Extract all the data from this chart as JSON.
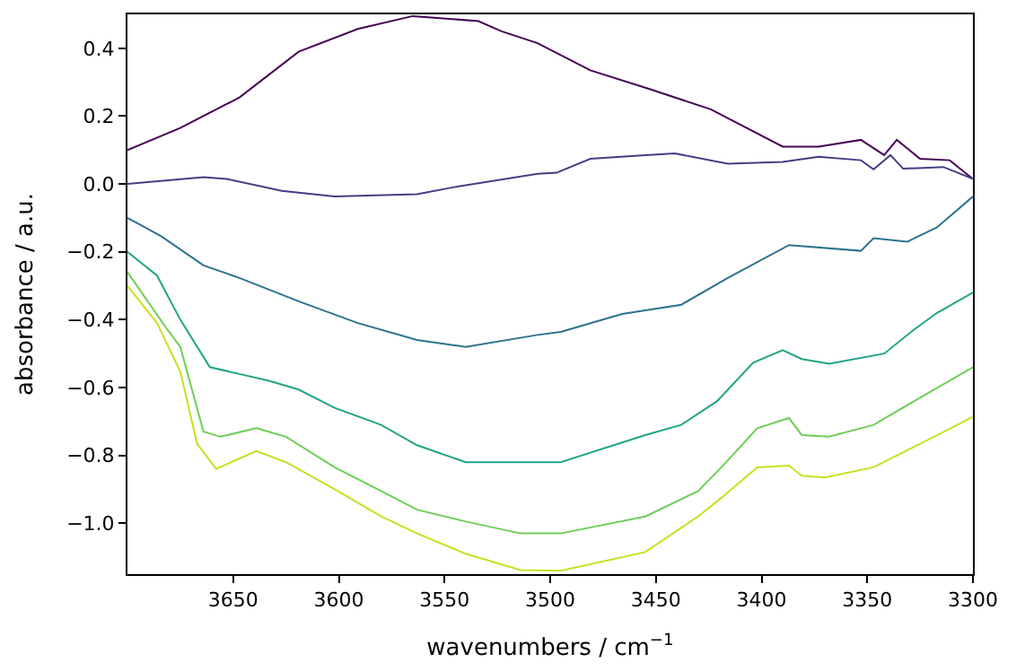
{
  "chart_data": {
    "type": "line",
    "xlabel": "wavenumbers / cm$^{−1}$",
    "ylabel": "absorbance / a.u.",
    "xlim": [
      3700,
      3300
    ],
    "xticks": [
      3650,
      3600,
      3550,
      3500,
      3450,
      3400,
      3350,
      3300
    ],
    "ylim": [
      -1.15,
      0.5
    ],
    "yticks": [
      {
        "value": -1.0,
        "label": "−1.0"
      },
      {
        "value": -0.8,
        "label": "−0.8"
      },
      {
        "value": -0.6,
        "label": "−0.6"
      },
      {
        "value": -0.4,
        "label": "−0.4"
      },
      {
        "value": -0.2,
        "label": "−0.2"
      },
      {
        "value": 0.0,
        "label": "0.0"
      },
      {
        "value": 0.2,
        "label": "0.2"
      },
      {
        "value": 0.4,
        "label": "0.4"
      }
    ],
    "marker": "none",
    "line_style": "solid",
    "series": [
      {
        "color": "#440154",
        "x": [
          3700,
          3675,
          3647,
          3619,
          3591,
          3565,
          3534,
          3523,
          3506,
          3481,
          3453,
          3424,
          3390,
          3373,
          3353,
          3342,
          3336,
          3325,
          3311,
          3300
        ],
        "values": [
          0.1,
          0.165,
          0.255,
          0.39,
          0.457,
          0.495,
          0.48,
          0.45,
          0.415,
          0.335,
          0.28,
          0.22,
          0.11,
          0.11,
          0.13,
          0.085,
          0.13,
          0.074,
          0.07,
          0.015
        ]
      },
      {
        "color": "#433e85",
        "x": [
          3700,
          3664,
          3653,
          3627,
          3602,
          3563,
          3546,
          3506,
          3497,
          3481,
          3455,
          3441,
          3416,
          3390,
          3373,
          3353,
          3347,
          3339,
          3333,
          3314,
          3300
        ],
        "values": [
          0.0,
          0.02,
          0.015,
          -0.02,
          -0.037,
          -0.03,
          -0.01,
          0.03,
          0.033,
          0.074,
          0.085,
          0.09,
          0.06,
          0.065,
          0.08,
          0.07,
          0.043,
          0.085,
          0.045,
          0.05,
          0.015
        ]
      },
      {
        "color": "#2c728e",
        "x": [
          3700,
          3684,
          3664,
          3647,
          3619,
          3591,
          3563,
          3540,
          3506,
          3495,
          3466,
          3438,
          3416,
          3387,
          3353,
          3347,
          3331,
          3317,
          3300
        ],
        "values": [
          -0.1,
          -0.154,
          -0.24,
          -0.277,
          -0.346,
          -0.41,
          -0.46,
          -0.48,
          -0.445,
          -0.436,
          -0.383,
          -0.356,
          -0.277,
          -0.18,
          -0.197,
          -0.16,
          -0.17,
          -0.128,
          -0.037
        ]
      },
      {
        "color": "#20a486",
        "x": [
          3700,
          3686,
          3675,
          3661,
          3647,
          3633,
          3619,
          3602,
          3580,
          3563,
          3540,
          3524,
          3495,
          3455,
          3438,
          3421,
          3404,
          3390,
          3381,
          3368,
          3342,
          3328,
          3317,
          3300
        ],
        "values": [
          -0.2,
          -0.27,
          -0.4,
          -0.54,
          -0.56,
          -0.58,
          -0.606,
          -0.66,
          -0.71,
          -0.77,
          -0.82,
          -0.82,
          -0.82,
          -0.74,
          -0.71,
          -0.64,
          -0.527,
          -0.49,
          -0.516,
          -0.53,
          -0.5,
          -0.43,
          -0.38,
          -0.32
        ]
      },
      {
        "color": "#6ece58",
        "x": [
          3700,
          3681,
          3675,
          3664,
          3656,
          3639,
          3625,
          3602,
          3580,
          3563,
          3540,
          3514,
          3495,
          3455,
          3430,
          3419,
          3402,
          3387,
          3381,
          3368,
          3347,
          3325,
          3300
        ],
        "values": [
          -0.26,
          -0.43,
          -0.48,
          -0.73,
          -0.745,
          -0.72,
          -0.745,
          -0.835,
          -0.905,
          -0.96,
          -0.995,
          -1.03,
          -1.03,
          -0.98,
          -0.905,
          -0.835,
          -0.72,
          -0.69,
          -0.74,
          -0.745,
          -0.71,
          -0.63,
          -0.54
        ]
      },
      {
        "color": "#c8e020",
        "x": [
          3700,
          3686,
          3675,
          3667,
          3658,
          3639,
          3625,
          3602,
          3580,
          3563,
          3540,
          3514,
          3495,
          3455,
          3430,
          3419,
          3402,
          3387,
          3381,
          3370,
          3347,
          3325,
          3300
        ],
        "values": [
          -0.3,
          -0.41,
          -0.553,
          -0.766,
          -0.84,
          -0.787,
          -0.82,
          -0.9,
          -0.98,
          -1.03,
          -1.09,
          -1.138,
          -1.14,
          -1.085,
          -0.98,
          -0.925,
          -0.835,
          -0.83,
          -0.86,
          -0.865,
          -0.835,
          -0.766,
          -0.686
        ]
      }
    ]
  }
}
